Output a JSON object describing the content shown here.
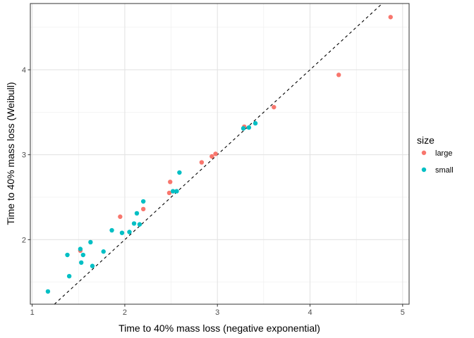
{
  "chart_data": {
    "type": "scatter",
    "xlabel": "Time to 40% mass loss (negative exponential)",
    "ylabel": "Time to 40% mass loss (Weibull)",
    "xlim": [
      0.98,
      5.07
    ],
    "ylim": [
      1.24,
      4.78
    ],
    "x_ticks": [
      1,
      2,
      3,
      4,
      5
    ],
    "y_ticks": [
      2,
      3,
      4
    ],
    "grid": true,
    "reference_line": {
      "type": "dashed",
      "slope": 1.0,
      "intercept": 0.0
    },
    "legend": {
      "title": "size",
      "placement": "right"
    },
    "series": [
      {
        "name": "large",
        "color": "#F8766D",
        "points": [
          [
            1.52,
            1.87
          ],
          [
            1.95,
            2.27
          ],
          [
            2.2,
            2.36
          ],
          [
            2.48,
            2.55
          ],
          [
            2.49,
            2.68
          ],
          [
            2.83,
            2.91
          ],
          [
            2.94,
            2.98
          ],
          [
            2.98,
            3.01
          ],
          [
            3.29,
            3.33
          ],
          [
            3.61,
            3.56
          ],
          [
            4.31,
            3.94
          ],
          [
            4.87,
            4.62
          ]
        ]
      },
      {
        "name": "small",
        "color": "#00BFC4",
        "points": [
          [
            1.17,
            1.39
          ],
          [
            1.38,
            1.82
          ],
          [
            1.4,
            1.57
          ],
          [
            1.52,
            1.89
          ],
          [
            1.53,
            1.73
          ],
          [
            1.55,
            1.82
          ],
          [
            1.63,
            1.97
          ],
          [
            1.65,
            1.69
          ],
          [
            1.77,
            1.86
          ],
          [
            1.86,
            2.11
          ],
          [
            1.97,
            2.08
          ],
          [
            2.05,
            2.09
          ],
          [
            2.1,
            2.19
          ],
          [
            2.13,
            2.31
          ],
          [
            2.16,
            2.18
          ],
          [
            2.2,
            2.45
          ],
          [
            2.52,
            2.57
          ],
          [
            2.56,
            2.57
          ],
          [
            2.59,
            2.79
          ],
          [
            3.28,
            3.31
          ],
          [
            3.34,
            3.32
          ],
          [
            3.41,
            3.37
          ]
        ]
      }
    ]
  }
}
